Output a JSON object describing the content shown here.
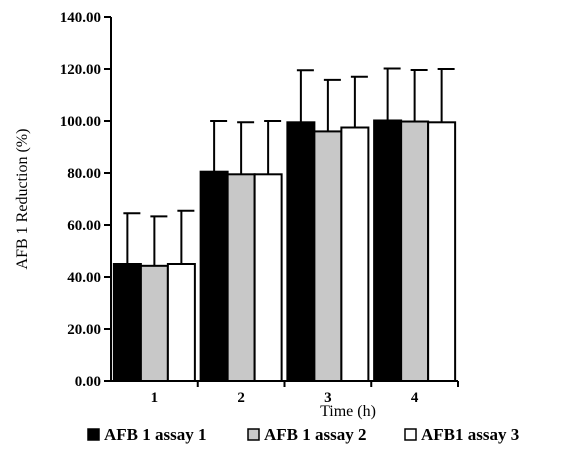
{
  "chart_data": {
    "type": "bar",
    "title": "",
    "xlabel": "Time (h)",
    "ylabel": "AFB 1 Reduction (%)",
    "categories": [
      "1",
      "2",
      "3",
      "4"
    ],
    "ylim": [
      0,
      140
    ],
    "yticks": [
      "0.00",
      "20.00",
      "40.00",
      "60.00",
      "80.00",
      "100.00",
      "120.00",
      "140.00"
    ],
    "grid": false,
    "legend_position": "bottom",
    "error_bars": "upper only",
    "series": [
      {
        "name": "AFB 1 assay 1",
        "color": "#000000",
        "values": [
          45.0,
          80.5,
          99.5,
          100.2
        ],
        "errors": [
          19.5,
          19.5,
          20.0,
          20.0
        ]
      },
      {
        "name": "AFB 1 assay 2",
        "color": "#c8c8c8",
        "values": [
          44.3,
          79.5,
          96.0,
          99.8
        ],
        "errors": [
          19.0,
          20.0,
          19.8,
          19.8
        ]
      },
      {
        "name": "AFB1 assay 3",
        "color": "#ffffff",
        "values": [
          45.0,
          79.5,
          97.5,
          99.5
        ],
        "errors": [
          20.5,
          20.5,
          19.5,
          20.5
        ]
      }
    ]
  }
}
